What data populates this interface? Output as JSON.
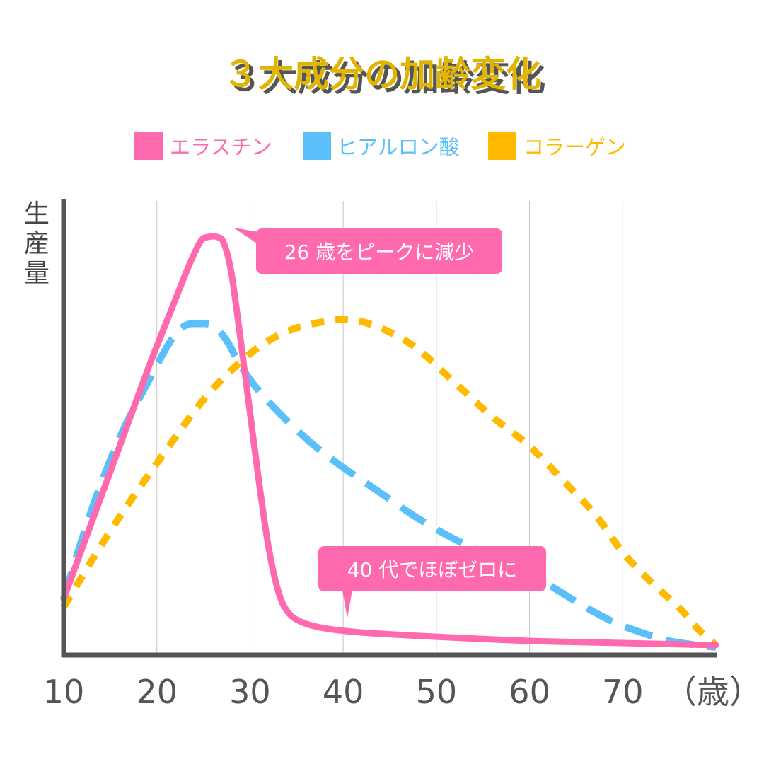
{
  "chart_data": {
    "type": "line",
    "title": "３大成分の加齢変化",
    "xlabel": "（歳）",
    "ylabel": "生産量",
    "xlim": [
      10,
      80
    ],
    "ylim": [
      0,
      100
    ],
    "x_ticks": [
      10,
      20,
      30,
      40,
      50,
      60,
      70
    ],
    "grid": "vertical",
    "legend_position": "top",
    "series": [
      {
        "name": "エラスチン",
        "color": "#ff69ae",
        "style": "solid",
        "points": [
          [
            10,
            12
          ],
          [
            13,
            30
          ],
          [
            16,
            48
          ],
          [
            19,
            66
          ],
          [
            21.5,
            80
          ],
          [
            23.5,
            91
          ],
          [
            24.7,
            96.5
          ],
          [
            25.5,
            97.5
          ],
          [
            26.5,
            97.5
          ],
          [
            27.2,
            96
          ],
          [
            28,
            89
          ],
          [
            29,
            73
          ],
          [
            30,
            56
          ],
          [
            31,
            39
          ],
          [
            32,
            24
          ],
          [
            33,
            14
          ],
          [
            34,
            9
          ],
          [
            35.5,
            6.5
          ],
          [
            38,
            5
          ],
          [
            42,
            4
          ],
          [
            50,
            3
          ],
          [
            60,
            2
          ],
          [
            70,
            1.5
          ],
          [
            80,
            1
          ]
        ]
      },
      {
        "name": "ヒアルロン酸",
        "color": "#5bc0fa",
        "style": "dashed",
        "points": [
          [
            10,
            12
          ],
          [
            13,
            33
          ],
          [
            16,
            50
          ],
          [
            19,
            63
          ],
          [
            21.5,
            73
          ],
          [
            23,
            76.5
          ],
          [
            24.5,
            77
          ],
          [
            26,
            76.5
          ],
          [
            27.5,
            73
          ],
          [
            29,
            67
          ],
          [
            31,
            61
          ],
          [
            34,
            54
          ],
          [
            37,
            48
          ],
          [
            40,
            43
          ],
          [
            44,
            37
          ],
          [
            48,
            31
          ],
          [
            52,
            26
          ],
          [
            56,
            22
          ],
          [
            60,
            18
          ],
          [
            63,
            14
          ],
          [
            66,
            10
          ],
          [
            69,
            6.5
          ],
          [
            72,
            4
          ],
          [
            75,
            2
          ],
          [
            78,
            1
          ],
          [
            80,
            0.5
          ]
        ]
      },
      {
        "name": "コラーゲン",
        "color": "#ffba00",
        "style": "dotted",
        "points": [
          [
            10,
            10
          ],
          [
            15,
            28
          ],
          [
            20,
            44
          ],
          [
            25,
            59
          ],
          [
            29,
            68
          ],
          [
            32,
            73
          ],
          [
            35,
            76
          ],
          [
            38,
            77.5
          ],
          [
            40,
            78
          ],
          [
            42,
            77.5
          ],
          [
            45,
            75
          ],
          [
            48,
            71
          ],
          [
            52,
            63
          ],
          [
            56,
            55
          ],
          [
            60,
            48
          ],
          [
            64,
            39
          ],
          [
            67,
            32
          ],
          [
            70,
            23
          ],
          [
            73,
            16
          ],
          [
            76,
            10
          ],
          [
            78,
            5
          ],
          [
            80,
            1
          ]
        ]
      }
    ],
    "annotations": [
      {
        "text": "26 歳をピークに減少",
        "target_x": 27,
        "target_y": 97
      },
      {
        "text": "40 代でほぼゼロに",
        "target_x": 40,
        "target_y": 8
      }
    ]
  }
}
